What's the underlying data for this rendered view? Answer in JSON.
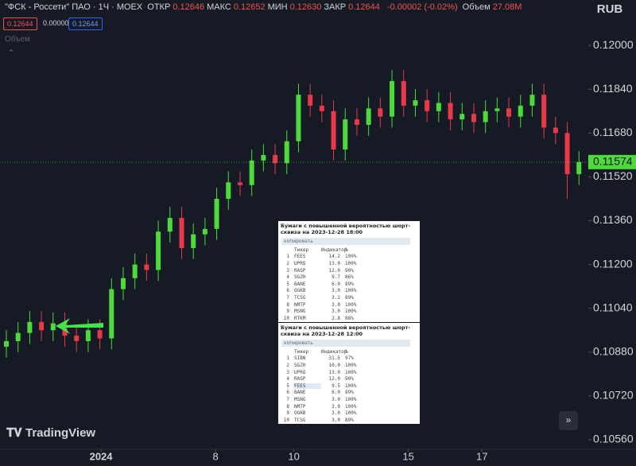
{
  "header": {
    "title": "\"ФСК - Россети\" ПАО · 1Ч · MOEX",
    "ohlc": [
      {
        "label": "ОТКР",
        "value": "0.12646"
      },
      {
        "label": "МАКС",
        "value": "0.12652"
      },
      {
        "label": "МИН",
        "value": "0.12630"
      },
      {
        "label": "ЗАКР",
        "value": "0.12644"
      }
    ],
    "change": "-0.00002 (-0.02%)",
    "volume_label": "Объем",
    "volume": "27.08M",
    "price_boxes": [
      "0.12644",
      "0.00000",
      "0.12644"
    ],
    "indicator": "Объем",
    "currency": "RUB",
    "logo": "TradingView"
  },
  "chart_data": {
    "type": "candlestick",
    "up_color": "#4cdb3a",
    "down_color": "#e8394a",
    "grid": false,
    "open": [
      0.109,
      0.1092,
      0.1095,
      0.1099,
      0.1096,
      0.10985,
      0.1094,
      0.1092,
      0.1096,
      0.1093,
      0.1111,
      0.1115,
      0.112,
      0.1118,
      0.1132,
      0.1137,
      0.1126,
      0.1131,
      0.1133,
      0.1144,
      0.115,
      0.1149,
      0.1158,
      0.116,
      0.1157,
      0.1165,
      0.1182,
      0.1178,
      0.1176,
      0.1162,
      0.1173,
      0.1171,
      0.1177,
      0.1174,
      0.1187,
      0.1178,
      0.118,
      0.1176,
      0.1179,
      0.1173,
      0.1175,
      0.1172,
      0.1176,
      0.1177,
      0.1174,
      0.1178,
      0.1182,
      0.117,
      0.1168,
      0.1153
    ],
    "high": [
      0.1096,
      0.1099,
      0.1103,
      0.1103,
      0.11025,
      0.11025,
      0.1098,
      0.11,
      0.11,
      0.1115,
      0.1119,
      0.1124,
      0.1124,
      0.1136,
      0.1141,
      0.1141,
      0.1135,
      0.1137,
      0.1148,
      0.1154,
      0.1154,
      0.1162,
      0.1164,
      0.1164,
      0.1169,
      0.1186,
      0.1186,
      0.1182,
      0.118,
      0.1177,
      0.1177,
      0.1181,
      0.1181,
      0.1191,
      0.1191,
      0.1184,
      0.1184,
      0.1183,
      0.1183,
      0.1179,
      0.1179,
      0.118,
      0.1181,
      0.1181,
      0.1182,
      0.1186,
      0.1186,
      0.1174,
      0.1172,
      0.11614
    ],
    "low": [
      0.1086,
      0.1088,
      0.1091,
      0.1092,
      0.1092,
      0.109,
      0.1088,
      0.1088,
      0.1089,
      0.1089,
      0.1107,
      0.1111,
      0.1114,
      0.1114,
      0.1128,
      0.1122,
      0.1122,
      0.1127,
      0.1129,
      0.114,
      0.1145,
      0.1145,
      0.1154,
      0.1153,
      0.1153,
      0.1161,
      0.1174,
      0.1172,
      0.1158,
      0.1158,
      0.1167,
      0.1167,
      0.117,
      0.117,
      0.1174,
      0.1174,
      0.1172,
      0.1172,
      0.1169,
      0.1169,
      0.1168,
      0.1168,
      0.1172,
      0.117,
      0.117,
      0.1174,
      0.1166,
      0.1164,
      0.1144,
      0.1149
    ],
    "close": [
      0.1092,
      0.1095,
      0.1099,
      0.1096,
      0.10985,
      0.1094,
      0.1092,
      0.1096,
      0.1093,
      0.1111,
      0.1115,
      0.112,
      0.1118,
      0.1132,
      0.1137,
      0.1126,
      0.1131,
      0.1133,
      0.1144,
      0.115,
      0.1149,
      0.1158,
      0.116,
      0.1157,
      0.1165,
      0.1182,
      0.1178,
      0.1176,
      0.1162,
      0.1173,
      0.1171,
      0.1177,
      0.1174,
      0.1187,
      0.1178,
      0.118,
      0.1176,
      0.1179,
      0.1173,
      0.1175,
      0.1172,
      0.1176,
      0.1177,
      0.1174,
      0.1178,
      0.1182,
      0.117,
      0.1168,
      0.1153,
      0.11574
    ],
    "xlim": [
      -0.544,
      49.8
    ],
    "ylim": [
      0.10525,
      0.12166
    ],
    "xticks": [
      {
        "value": 8.1,
        "label": "2024"
      },
      {
        "value": 17.9,
        "label": "8"
      },
      {
        "value": 24.6,
        "label": "10"
      },
      {
        "value": 34.4,
        "label": "15"
      },
      {
        "value": 40.7,
        "label": "17"
      }
    ],
    "yticks": [
      {
        "value": 0.1056,
        "label": "0.10560"
      },
      {
        "value": 0.1072,
        "label": "0.10720"
      },
      {
        "value": 0.1088,
        "label": "0.10880"
      },
      {
        "value": 0.1104,
        "label": "0.11040"
      },
      {
        "value": 0.112,
        "label": "0.11200"
      },
      {
        "value": 0.1136,
        "label": "0.11360"
      },
      {
        "value": 0.1152,
        "label": "0.11520"
      },
      {
        "value": 0.1168,
        "label": "0.11680"
      },
      {
        "value": 0.1184,
        "label": "0.11840"
      },
      {
        "value": 0.12,
        "label": "0.12000"
      }
    ]
  },
  "tables": [
    {
      "title": "Бумаги с повышенной вероятностью шорт-сквиза на 2023-12-28 18:00",
      "button": "копировать",
      "columns": [
        "Тикер",
        "Индикатор",
        "%"
      ],
      "rows": [
        [
          "1",
          "FEES",
          "14.2",
          "100%"
        ],
        [
          "2",
          "UPRO",
          "13.0",
          "100%"
        ],
        [
          "3",
          "RASP",
          "12.0",
          "90%"
        ],
        [
          "4",
          "SGZH",
          "9.7",
          "86%"
        ],
        [
          "5",
          "BANE",
          "6.0",
          "89%"
        ],
        [
          "6",
          "OGKB",
          "3.0",
          "100%"
        ],
        [
          "7",
          "TCSG",
          "3.2",
          "89%"
        ],
        [
          "8",
          "NMTP",
          "3.0",
          "100%"
        ],
        [
          "9",
          "MSNG",
          "3.0",
          "100%"
        ],
        [
          "10",
          "RTKM",
          "2.8",
          "88%"
        ]
      ]
    },
    {
      "title": "Бумаги с повышенной вероятностью шорт-сквиза на 2023-12-28 12:00",
      "button": "копировать",
      "columns": [
        "Тикер",
        "Индикатор",
        "%"
      ],
      "highlight_row": 4,
      "rows": [
        [
          "1",
          "SIBN",
          "31.5",
          "97%"
        ],
        [
          "2",
          "SGZH",
          "10.0",
          "100%"
        ],
        [
          "3",
          "UPRO",
          "13.0",
          "100%"
        ],
        [
          "4",
          "RASP",
          "12.0",
          "90%"
        ],
        [
          "5",
          "FEES",
          "9.5",
          "100%"
        ],
        [
          "6",
          "BANE",
          "6.0",
          "89%"
        ],
        [
          "7",
          "MSNG",
          "3.0",
          "100%"
        ],
        [
          "8",
          "NMTP",
          "3.0",
          "100%"
        ],
        [
          "9",
          "OGKB",
          "3.0",
          "100%"
        ],
        [
          "10",
          "TCSG",
          "3.0",
          "89%"
        ]
      ]
    }
  ]
}
